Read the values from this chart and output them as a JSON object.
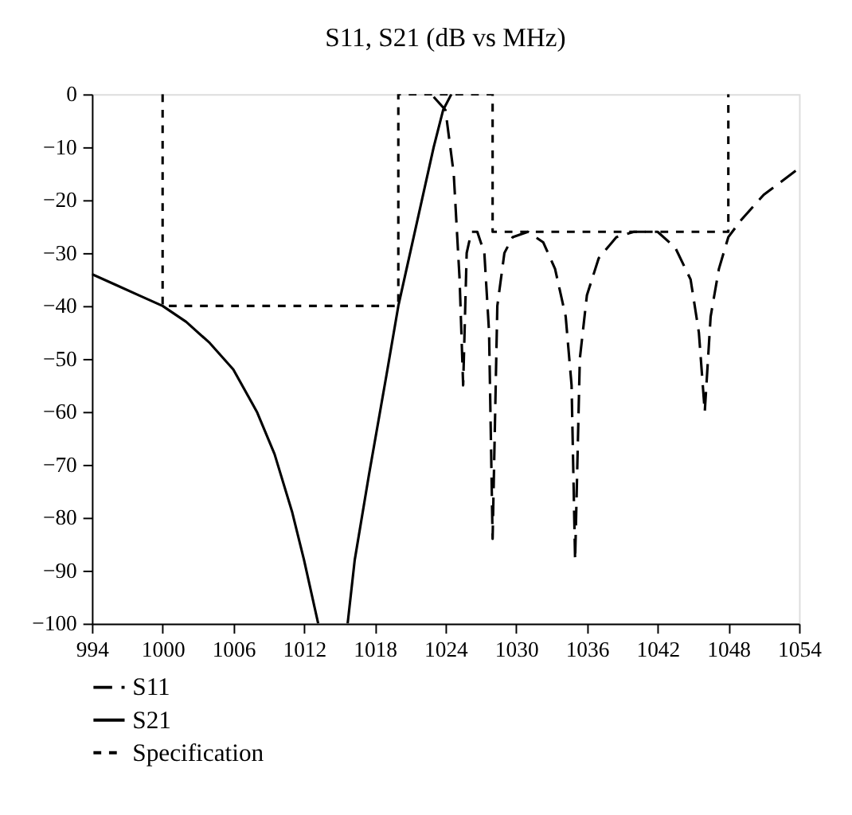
{
  "chart_data": {
    "type": "line",
    "title": "S11, S21 (dB vs MHz)",
    "xlim": [
      994,
      1054
    ],
    "xticks": [
      994,
      1000,
      1006,
      1012,
      1018,
      1024,
      1030,
      1036,
      1042,
      1048,
      1054
    ],
    "ylim": [
      -100,
      0
    ],
    "yticks": [
      -100,
      -90,
      -80,
      -70,
      -60,
      -50,
      -40,
      -30,
      -20,
      -10,
      0
    ],
    "grid": false,
    "legend": "bottom left",
    "series": [
      {
        "name": "S11",
        "color": "#000000",
        "line_style": "dashed",
        "x": [
          1023,
          1024,
          1024.7,
          1025.2,
          1025.5,
          1025.8,
          1026.2,
          1026.7,
          1027.3,
          1027.7,
          1028,
          1028.4,
          1029,
          1029.7,
          1031,
          1032.3,
          1033.3,
          1034.2,
          1034.7,
          1035,
          1035.4,
          1036,
          1037,
          1038.5,
          1040,
          1042,
          1043.5,
          1044.8,
          1045.5,
          1046,
          1046.5,
          1047.2,
          1048,
          1049,
          1051,
          1054
        ],
        "values": [
          -0.5,
          -3,
          -15,
          -35,
          -55,
          -30,
          -26,
          -26,
          -30,
          -45,
          -84,
          -40,
          -30,
          -27,
          -26,
          -28,
          -33,
          -42,
          -55,
          -88,
          -50,
          -38,
          -31,
          -27,
          -26,
          -26,
          -29,
          -35,
          -45,
          -60,
          -42,
          -33,
          -27,
          -24,
          -19,
          -14
        ]
      },
      {
        "name": "S21",
        "color": "#000000",
        "line_style": "solid",
        "x": [
          994,
          996,
          998,
          1000,
          1002,
          1004,
          1006,
          1008,
          1009.5,
          1011,
          1012,
          1012.7,
          1013.2,
          null,
          1015.7,
          1016.3,
          1017.5,
          1019,
          1020,
          1021,
          1022,
          1023,
          1023.8,
          1024.5
        ],
        "values": [
          -34,
          -36,
          -38,
          -40,
          -43,
          -47,
          -52,
          -60,
          -68,
          -79,
          -88,
          -95,
          -100,
          null,
          -100,
          -88,
          -72,
          -53,
          -40,
          -30,
          -20,
          -10,
          -3,
          0
        ]
      },
      {
        "name": "Specification",
        "color": "#000000",
        "line_style": "dotted",
        "x": [
          1000,
          1000,
          1020,
          1020,
          1028,
          1028,
          1048,
          1048
        ],
        "values": [
          0,
          -40,
          -40,
          0,
          0,
          -26,
          -26,
          0
        ]
      }
    ]
  }
}
